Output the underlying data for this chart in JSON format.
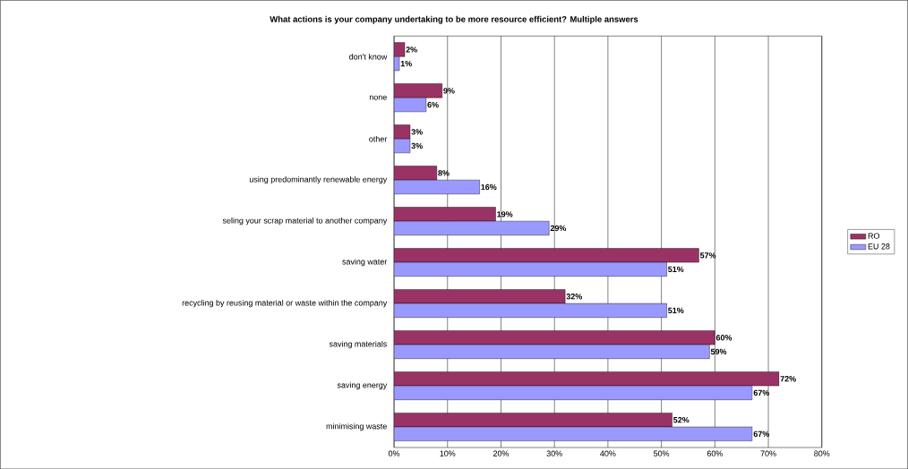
{
  "chart_data": {
    "type": "bar",
    "orientation": "horizontal",
    "title": "What actions is your company undertaking to be more resource efficient? Multiple answers",
    "categories": [
      "don't know",
      "none",
      "other",
      "using predominantly renewable energy",
      "seling your scrap material to another company",
      "saving water",
      "recycling by reusing material or waste within the company",
      "saving materials",
      "saving energy",
      "minimising waste"
    ],
    "series": [
      {
        "name": "RO",
        "color": "#993366",
        "values": [
          2,
          9,
          3,
          8,
          19,
          57,
          32,
          60,
          72,
          52
        ],
        "value_labels": [
          "2%",
          "9%",
          "3%",
          "8%",
          "19%",
          "57%",
          "32%",
          "60%",
          "72%",
          "52%"
        ]
      },
      {
        "name": "EU 28",
        "color": "#9999ff",
        "values": [
          1,
          6,
          3,
          16,
          29,
          51,
          51,
          59,
          67,
          67
        ],
        "value_labels": [
          "1%",
          "6%",
          "3%",
          "16%",
          "29%",
          "51%",
          "51%",
          "59%",
          "67%",
          "67%"
        ]
      }
    ],
    "xlim": [
      0,
      80
    ],
    "xticks": [
      {
        "value": 0,
        "label": "0%"
      },
      {
        "value": 10,
        "label": "10%"
      },
      {
        "value": 20,
        "label": "20%"
      },
      {
        "value": 30,
        "label": "30%"
      },
      {
        "value": 40,
        "label": "40%"
      },
      {
        "value": 50,
        "label": "50%"
      },
      {
        "value": 60,
        "label": "60%"
      },
      {
        "value": 70,
        "label": "70%"
      },
      {
        "value": 80,
        "label": "80%"
      }
    ],
    "grid": "x",
    "legend": "right"
  }
}
